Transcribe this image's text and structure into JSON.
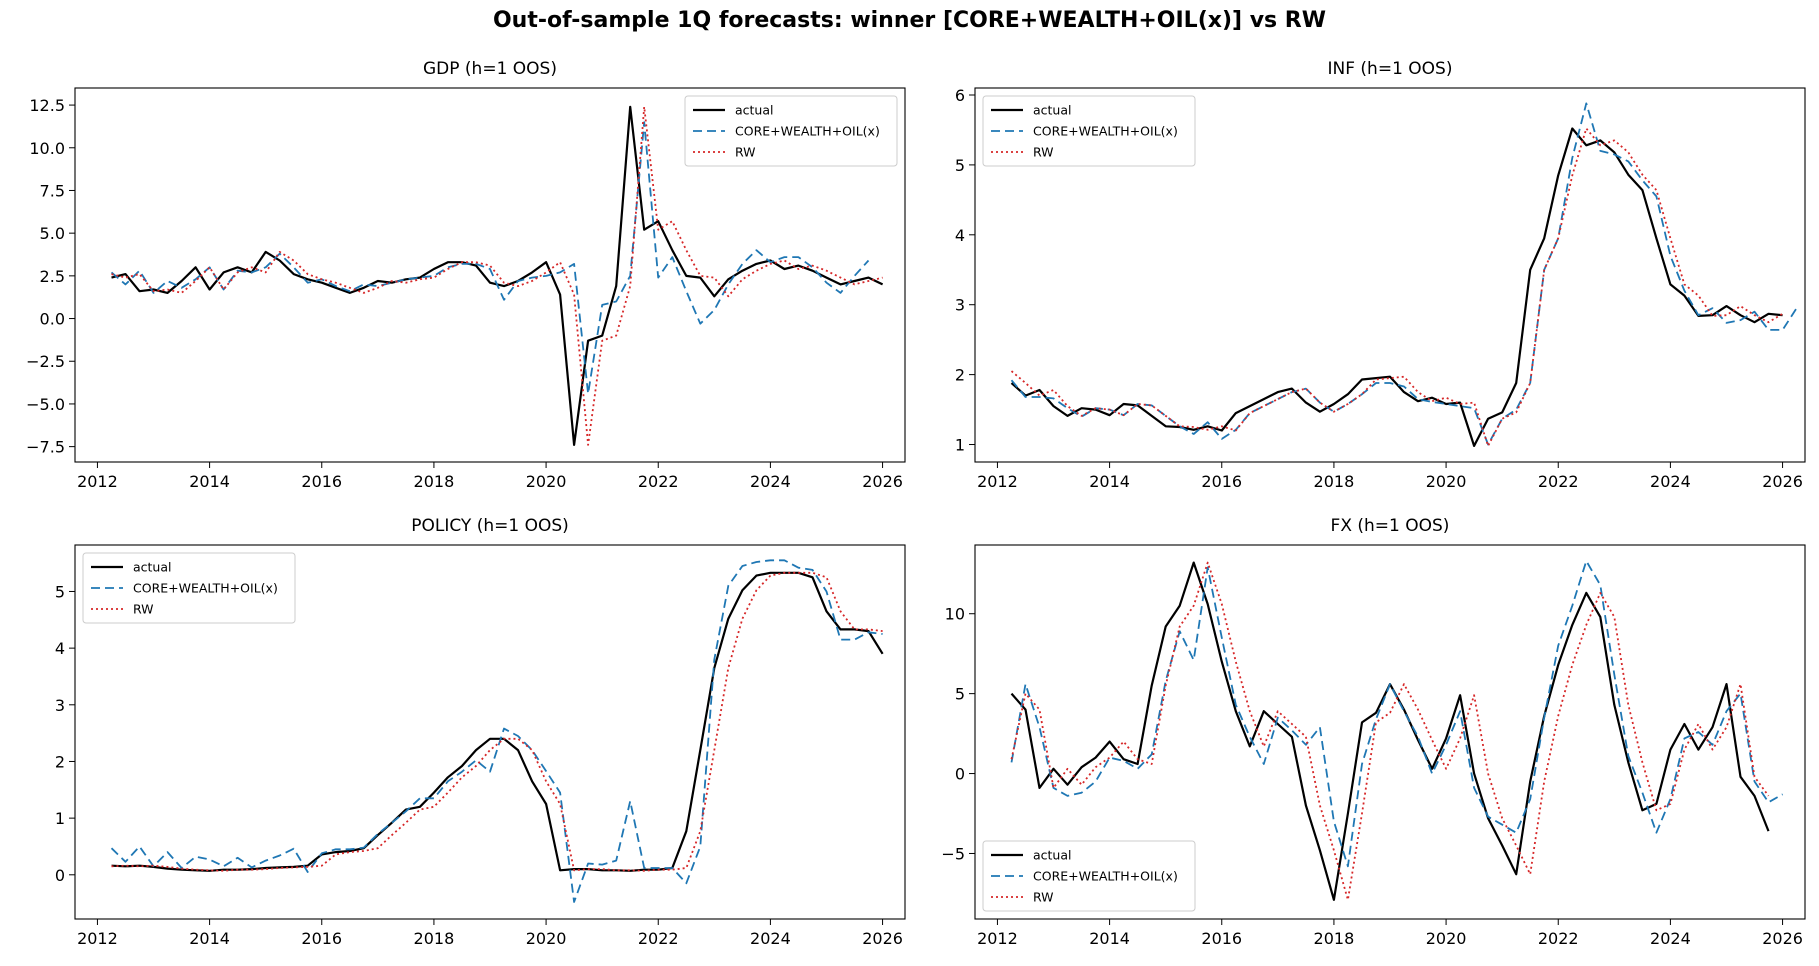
{
  "figure": {
    "title": "Out-of-sample 1Q forecasts: winner [CORE+WEALTH+OIL(x)] vs RW"
  },
  "series_styles": [
    {
      "name": "actual",
      "color": "#000000",
      "dash": ""
    },
    {
      "name": "CORE+WEALTH+OIL(x)",
      "color": "#1f77b4",
      "dash": "9,5"
    },
    {
      "name": "RW",
      "color": "#d62728",
      "dash": "2,3"
    }
  ],
  "chart_data": [
    {
      "type": "line",
      "title": "GDP  (h=1 OOS)",
      "xlabel": "",
      "ylabel": "",
      "xlim": [
        2011.6,
        2026.4
      ],
      "ylim": [
        -8.4,
        13.5
      ],
      "xticks": [
        2012,
        2014,
        2016,
        2018,
        2020,
        2022,
        2024,
        2026
      ],
      "yticks": [
        -7.5,
        -5.0,
        -2.5,
        0.0,
        2.5,
        5.0,
        7.5,
        10.0,
        12.5
      ],
      "ytick_labels": [
        "−7.5",
        "−5.0",
        "−2.5",
        "0.0",
        "2.5",
        "5.0",
        "7.5",
        "10.0",
        "12.5"
      ],
      "legend": "top-right",
      "x_start": 2012.25,
      "x_step": 0.25,
      "series": [
        {
          "name": "actual",
          "values": [
            2.4,
            2.6,
            1.6,
            1.7,
            1.5,
            2.2,
            3.0,
            1.7,
            2.7,
            3.0,
            2.7,
            3.9,
            3.4,
            2.6,
            2.3,
            2.1,
            1.8,
            1.5,
            1.8,
            2.2,
            2.1,
            2.3,
            2.4,
            2.9,
            3.3,
            3.3,
            3.1,
            2.1,
            1.9,
            2.2,
            2.7,
            3.3,
            1.4,
            -7.4,
            -1.3,
            -1.0,
            1.9,
            12.4,
            5.2,
            5.7,
            4.0,
            2.5,
            2.4,
            1.3,
            2.3,
            2.8,
            3.2,
            3.4,
            2.9,
            3.1,
            2.8,
            2.4,
            2.0,
            2.2,
            2.4,
            2.0
          ]
        },
        {
          "name": "CORE+WEALTH+OIL(x)",
          "values": [
            2.7,
            2.0,
            2.8,
            1.5,
            2.2,
            1.8,
            2.3,
            3.0,
            1.7,
            2.8,
            2.7,
            3.0,
            3.8,
            3.0,
            2.1,
            2.3,
            1.9,
            1.6,
            2.0,
            1.9,
            2.1,
            2.3,
            2.4,
            2.5,
            3.0,
            3.2,
            3.2,
            2.9,
            1.1,
            2.2,
            2.4,
            2.5,
            2.7,
            3.2,
            -4.4,
            0.8,
            1.0,
            2.5,
            11.5,
            2.4,
            3.6,
            1.6,
            -0.3,
            0.5,
            2.0,
            3.2,
            4.0,
            3.3,
            3.6,
            3.6,
            3.0,
            2.1,
            1.5,
            2.5,
            3.4
          ]
        },
        {
          "name": "RW",
          "values": [
            2.6,
            2.4,
            2.6,
            1.6,
            1.7,
            1.5,
            2.2,
            3.0,
            1.7,
            2.7,
            3.0,
            2.7,
            3.9,
            3.4,
            2.6,
            2.3,
            2.1,
            1.8,
            1.5,
            1.8,
            2.2,
            2.1,
            2.3,
            2.4,
            2.9,
            3.3,
            3.3,
            3.1,
            2.1,
            1.9,
            2.2,
            2.7,
            3.3,
            1.4,
            -7.4,
            -1.3,
            -1.0,
            1.9,
            12.4,
            5.2,
            5.7,
            4.0,
            2.5,
            2.4,
            1.3,
            2.3,
            2.8,
            3.2,
            3.4,
            2.9,
            3.1,
            2.8,
            2.4,
            2.0,
            2.2,
            2.4
          ]
        }
      ]
    },
    {
      "type": "line",
      "title": "INF  (h=1 OOS)",
      "xlabel": "",
      "ylabel": "",
      "xlim": [
        2011.6,
        2026.4
      ],
      "ylim": [
        0.75,
        6.1
      ],
      "xticks": [
        2012,
        2014,
        2016,
        2018,
        2020,
        2022,
        2024,
        2026
      ],
      "yticks": [
        1,
        2,
        3,
        4,
        5,
        6
      ],
      "ytick_labels": [
        "1",
        "2",
        "3",
        "4",
        "5",
        "6"
      ],
      "legend": "top-left",
      "x_start": 2012.25,
      "x_step": 0.25,
      "series": [
        {
          "name": "actual",
          "values": [
            1.88,
            1.7,
            1.78,
            1.55,
            1.41,
            1.52,
            1.5,
            1.42,
            1.58,
            1.56,
            1.41,
            1.26,
            1.25,
            1.21,
            1.26,
            1.2,
            1.45,
            1.55,
            1.65,
            1.75,
            1.8,
            1.6,
            1.47,
            1.58,
            1.72,
            1.93,
            1.95,
            1.97,
            1.75,
            1.62,
            1.67,
            1.58,
            1.6,
            0.98,
            1.37,
            1.46,
            1.88,
            3.5,
            3.95,
            4.85,
            5.52,
            5.28,
            5.35,
            5.18,
            4.86,
            4.64,
            3.95,
            3.29,
            3.13,
            2.84,
            2.85,
            2.98,
            2.85,
            2.75,
            2.87,
            2.85
          ]
        },
        {
          "name": "CORE+WEALTH+OIL(x)",
          "values": [
            1.92,
            1.68,
            1.68,
            1.66,
            1.52,
            1.4,
            1.52,
            1.5,
            1.42,
            1.58,
            1.56,
            1.41,
            1.26,
            1.15,
            1.32,
            1.08,
            1.21,
            1.45,
            1.55,
            1.65,
            1.75,
            1.8,
            1.6,
            1.47,
            1.58,
            1.72,
            1.88,
            1.88,
            1.83,
            1.65,
            1.61,
            1.58,
            1.55,
            1.52,
            1.0,
            1.37,
            1.5,
            1.88,
            3.5,
            3.95,
            5.1,
            5.88,
            5.2,
            5.15,
            5.05,
            4.78,
            4.55,
            3.7,
            3.2,
            2.85,
            2.95,
            2.74,
            2.78,
            2.9,
            2.64,
            2.64,
            2.95
          ]
        },
        {
          "name": "RW",
          "values": [
            2.05,
            1.88,
            1.7,
            1.78,
            1.55,
            1.41,
            1.52,
            1.5,
            1.42,
            1.58,
            1.56,
            1.41,
            1.26,
            1.25,
            1.21,
            1.26,
            1.2,
            1.45,
            1.55,
            1.65,
            1.75,
            1.8,
            1.6,
            1.47,
            1.58,
            1.72,
            1.93,
            1.95,
            1.97,
            1.75,
            1.62,
            1.67,
            1.58,
            1.6,
            0.98,
            1.37,
            1.46,
            1.88,
            3.5,
            3.95,
            4.85,
            5.52,
            5.28,
            5.35,
            5.18,
            4.86,
            4.64,
            3.95,
            3.29,
            3.13,
            2.84,
            2.85,
            2.98,
            2.85,
            2.75,
            2.87
          ]
        }
      ]
    },
    {
      "type": "line",
      "title": "POLICY  (h=1 OOS)",
      "xlabel": "",
      "ylabel": "",
      "xlim": [
        2011.6,
        2026.4
      ],
      "ylim": [
        -0.78,
        5.82
      ],
      "xticks": [
        2012,
        2014,
        2016,
        2018,
        2020,
        2022,
        2024,
        2026
      ],
      "yticks": [
        0,
        1,
        2,
        3,
        4,
        5
      ],
      "ytick_labels": [
        "0",
        "1",
        "2",
        "3",
        "4",
        "5"
      ],
      "legend": "top-left",
      "x_start": 2012.25,
      "x_step": 0.25,
      "series": [
        {
          "name": "actual",
          "values": [
            0.16,
            0.15,
            0.16,
            0.14,
            0.11,
            0.09,
            0.08,
            0.07,
            0.09,
            0.09,
            0.1,
            0.12,
            0.13,
            0.14,
            0.16,
            0.36,
            0.4,
            0.42,
            0.47,
            0.7,
            0.92,
            1.15,
            1.2,
            1.45,
            1.72,
            1.92,
            2.2,
            2.4,
            2.4,
            2.2,
            1.65,
            1.25,
            0.08,
            0.1,
            0.1,
            0.08,
            0.08,
            0.07,
            0.09,
            0.09,
            0.12,
            0.77,
            2.2,
            3.65,
            4.52,
            5.02,
            5.28,
            5.33,
            5.33,
            5.33,
            5.25,
            4.65,
            4.33,
            4.33,
            4.3,
            3.9
          ]
        },
        {
          "name": "CORE+WEALTH+OIL(x)",
          "values": [
            0.47,
            0.23,
            0.5,
            0.15,
            0.4,
            0.12,
            0.32,
            0.27,
            0.15,
            0.3,
            0.13,
            0.25,
            0.34,
            0.46,
            0.05,
            0.38,
            0.45,
            0.45,
            0.48,
            0.72,
            0.92,
            1.12,
            1.35,
            1.35,
            1.65,
            1.82,
            2.02,
            1.82,
            2.58,
            2.45,
            2.2,
            1.83,
            1.45,
            -0.48,
            0.2,
            0.18,
            0.25,
            1.3,
            0.12,
            0.12,
            0.12,
            -0.15,
            0.5,
            3.8,
            5.1,
            5.45,
            5.52,
            5.55,
            5.55,
            5.42,
            5.38,
            5.0,
            4.15,
            4.15,
            4.28,
            4.25
          ]
        },
        {
          "name": "RW",
          "values": [
            0.15,
            0.16,
            0.15,
            0.16,
            0.14,
            0.11,
            0.09,
            0.08,
            0.07,
            0.09,
            0.09,
            0.1,
            0.12,
            0.13,
            0.14,
            0.16,
            0.36,
            0.4,
            0.42,
            0.47,
            0.7,
            0.92,
            1.15,
            1.2,
            1.45,
            1.72,
            1.92,
            2.2,
            2.4,
            2.4,
            2.2,
            1.65,
            1.25,
            0.08,
            0.1,
            0.1,
            0.08,
            0.08,
            0.07,
            0.09,
            0.09,
            0.12,
            0.77,
            2.2,
            3.65,
            4.52,
            5.02,
            5.28,
            5.33,
            5.33,
            5.33,
            5.25,
            4.65,
            4.33,
            4.33,
            4.3
          ]
        }
      ]
    },
    {
      "type": "line",
      "title": "FX  (h=1 OOS)",
      "xlabel": "",
      "ylabel": "",
      "xlim": [
        2011.6,
        2026.4
      ],
      "ylim": [
        -9.1,
        14.3
      ],
      "xticks": [
        2012,
        2014,
        2016,
        2018,
        2020,
        2022,
        2024,
        2026
      ],
      "yticks": [
        -5,
        0,
        5,
        10
      ],
      "ytick_labels": [
        "−5",
        "0",
        "5",
        "10"
      ],
      "legend": "bottom-left",
      "x_start": 2012.25,
      "x_step": 0.25,
      "series": [
        {
          "name": "actual",
          "values": [
            5.0,
            4.0,
            -0.9,
            0.3,
            -0.7,
            0.4,
            1.0,
            2.0,
            0.9,
            0.6,
            5.5,
            9.2,
            10.5,
            13.2,
            10.6,
            7.0,
            3.9,
            1.7,
            3.9,
            3.1,
            2.3,
            -2.0,
            -4.8,
            -7.9,
            -2.5,
            3.2,
            3.8,
            5.6,
            4.0,
            2.1,
            0.3,
            2.2,
            4.9,
            0.0,
            -2.8,
            -4.5,
            -6.3,
            -0.5,
            3.6,
            6.8,
            9.3,
            11.3,
            9.8,
            4.3,
            0.7,
            -2.3,
            -1.9,
            1.5,
            3.1,
            1.5,
            2.9,
            5.6,
            -0.2,
            -1.4,
            -3.6
          ]
        },
        {
          "name": "CORE+WEALTH+OIL(x)",
          "values": [
            0.7,
            5.6,
            2.9,
            -0.9,
            -1.4,
            -1.2,
            -0.5,
            1.0,
            0.8,
            0.3,
            1.2,
            5.8,
            8.9,
            7.1,
            12.9,
            8.5,
            4.3,
            2.3,
            0.6,
            3.5,
            2.7,
            1.8,
            2.9,
            -3.0,
            -5.8,
            0.6,
            3.4,
            5.6,
            3.9,
            2.3,
            0.0,
            1.8,
            3.9,
            -0.9,
            -2.7,
            -3.2,
            -3.7,
            -1.6,
            3.5,
            8.0,
            10.5,
            13.3,
            11.8,
            6.2,
            1.1,
            -1.2,
            -3.7,
            -1.6,
            2.2,
            2.6,
            1.8,
            3.9,
            5.0,
            -0.5,
            -1.8,
            -1.3
          ]
        },
        {
          "name": "RW",
          "values": [
            0.9,
            5.0,
            4.0,
            -0.9,
            0.3,
            -0.7,
            0.4,
            1.0,
            2.0,
            0.9,
            0.6,
            5.5,
            9.2,
            10.5,
            13.2,
            10.6,
            7.0,
            3.9,
            1.7,
            3.9,
            3.1,
            2.3,
            -2.0,
            -4.8,
            -7.9,
            -2.5,
            3.2,
            3.8,
            5.6,
            4.0,
            2.1,
            0.3,
            2.2,
            4.9,
            0.0,
            -2.8,
            -4.5,
            -6.3,
            -0.5,
            3.6,
            6.8,
            9.3,
            11.3,
            9.8,
            4.3,
            0.7,
            -2.3,
            -1.9,
            1.5,
            3.1,
            1.5,
            2.9,
            5.6,
            -0.2,
            -1.4
          ]
        }
      ]
    }
  ]
}
